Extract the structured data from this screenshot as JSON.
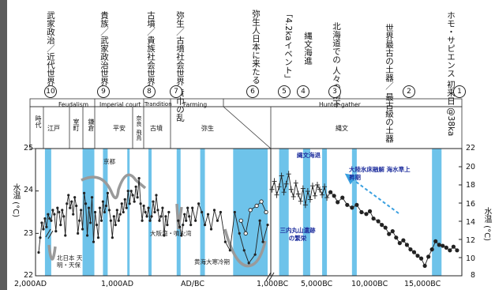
{
  "chart_data": {
    "type": "line",
    "y_axis_left": {
      "label": "水温 (°C)",
      "range": [
        22,
        25
      ],
      "ticks": [
        "25",
        "24",
        "23",
        "22"
      ]
    },
    "y_axis_right": {
      "label": "水温 (°C)",
      "range": [
        8,
        22
      ],
      "ticks": [
        "22",
        "20",
        "18",
        "16",
        "14",
        "12",
        "10",
        "8"
      ]
    },
    "x_ticks": [
      "2,000AD",
      "1,000AD",
      "AD/BC",
      "1,000BC",
      "5,000BC",
      "10,000BC",
      "15,000BC"
    ],
    "left_segment_x_range": [
      "2,000AD",
      "1,000BC"
    ],
    "right_segment_x_range": [
      "1,000BC",
      "17,000BC"
    ],
    "series": [
      {
        "axis": "left",
        "values": [
          [
            1960,
            22.55
          ],
          [
            1940,
            22.9
          ],
          [
            1920,
            23.25
          ],
          [
            1900,
            23.1
          ],
          [
            1880,
            23.35
          ],
          [
            1860,
            23.15
          ],
          [
            1840,
            23.45
          ],
          [
            1820,
            23.35
          ],
          [
            1800,
            23.3
          ],
          [
            1780,
            23.55
          ],
          [
            1760,
            23.45
          ],
          [
            1740,
            23.05
          ],
          [
            1720,
            23.6
          ],
          [
            1700,
            23.5
          ],
          [
            1680,
            23.2
          ],
          [
            1660,
            23.55
          ],
          [
            1640,
            23.4
          ],
          [
            1620,
            22.95
          ],
          [
            1600,
            23.7
          ],
          [
            1580,
            23.9
          ],
          [
            1560,
            23.6
          ],
          [
            1540,
            23.75
          ],
          [
            1520,
            23.45
          ],
          [
            1500,
            23.85
          ],
          [
            1480,
            23.65
          ],
          [
            1460,
            23.0
          ],
          [
            1440,
            23.3
          ],
          [
            1420,
            23.55
          ],
          [
            1400,
            23.1
          ],
          [
            1380,
            23.95
          ],
          [
            1360,
            23.7
          ],
          [
            1340,
            22.95
          ],
          [
            1320,
            23.6
          ],
          [
            1300,
            23.25
          ],
          [
            1280,
            23.85
          ],
          [
            1260,
            22.8
          ],
          [
            1240,
            23.5
          ],
          [
            1220,
            23.2
          ],
          [
            1200,
            22.9
          ],
          [
            1180,
            23.6
          ],
          [
            1160,
            23.3
          ],
          [
            1140,
            23.75
          ],
          [
            1120,
            23.5
          ],
          [
            1100,
            23.65
          ],
          [
            1080,
            23.95
          ],
          [
            1060,
            23.55
          ],
          [
            1040,
            23.3
          ],
          [
            1020,
            22.9
          ],
          [
            1000,
            23.4
          ],
          [
            980,
            23.2
          ],
          [
            960,
            23.55
          ],
          [
            940,
            23.3
          ],
          [
            920,
            23.45
          ],
          [
            900,
            23.7
          ],
          [
            880,
            23.5
          ],
          [
            860,
            23.8
          ],
          [
            840,
            23.6
          ],
          [
            820,
            24.0
          ],
          [
            800,
            23.7
          ],
          [
            780,
            24.0
          ],
          [
            760,
            23.9
          ],
          [
            740,
            23.75
          ],
          [
            720,
            24.1
          ],
          [
            700,
            23.85
          ],
          [
            680,
            24.3
          ],
          [
            660,
            23.7
          ],
          [
            640,
            23.3
          ],
          [
            620,
            23.65
          ],
          [
            600,
            23.5
          ],
          [
            580,
            23.4
          ],
          [
            560,
            23.6
          ],
          [
            540,
            23.3
          ],
          [
            520,
            23.4
          ],
          [
            500,
            23.75
          ],
          [
            480,
            23.5
          ],
          [
            460,
            23.9
          ],
          [
            440,
            23.55
          ],
          [
            420,
            23.3
          ],
          [
            400,
            23.4
          ],
          [
            380,
            23.6
          ],
          [
            360,
            22.95
          ],
          [
            340,
            23.4
          ],
          [
            320,
            23.2
          ],
          [
            300,
            23.5
          ]
        ]
      },
      {
        "axis": "left",
        "values": [
          [
            180,
            23.3
          ],
          [
            160,
            23.15
          ],
          [
            140,
            22.95
          ],
          [
            120,
            23.2
          ],
          [
            100,
            23.45
          ],
          [
            80,
            23.3
          ],
          [
            60,
            23.6
          ],
          [
            40,
            23.4
          ],
          [
            20,
            23.2
          ],
          [
            0,
            23.6
          ],
          [
            -40,
            23.3
          ],
          [
            -80,
            23.7
          ],
          [
            -120,
            23.5
          ],
          [
            -160,
            23.2
          ],
          [
            -200,
            23.45
          ],
          [
            -240,
            23.1
          ],
          [
            -280,
            23.55
          ],
          [
            -320,
            23.3
          ],
          [
            -360,
            23.5
          ],
          [
            -420,
            22.8
          ],
          [
            -480,
            22.6
          ],
          [
            -540,
            23.5
          ],
          [
            -600,
            23.0
          ],
          [
            -660,
            22.6
          ],
          [
            -720,
            22.3
          ],
          [
            -800,
            22.5
          ],
          [
            -860,
            23.3
          ],
          [
            -900,
            22.8
          ],
          [
            -960,
            23.2
          ]
        ]
      },
      {
        "axis": "left",
        "values": [
          [
            -620,
            23.3
          ],
          [
            -680,
            23.0
          ],
          [
            -740,
            23.55
          ],
          [
            -820,
            23.65
          ],
          [
            -880,
            23.75
          ],
          [
            -940,
            23.5
          ]
        ]
      },
      {
        "axis": "right",
        "values": [
          [
            -1100,
            17.5
          ],
          [
            -1300,
            18.4
          ],
          [
            -1500,
            16.9
          ],
          [
            -1700,
            17.8
          ],
          [
            -1900,
            19.0
          ],
          [
            -2100,
            17.2
          ],
          [
            -2300,
            18.1
          ],
          [
            -2500,
            19.2
          ],
          [
            -2700,
            17.5
          ],
          [
            -2900,
            16.7
          ],
          [
            -3100,
            18.2
          ],
          [
            -3300,
            17.0
          ],
          [
            -3500,
            16.2
          ],
          [
            -3700,
            17.6
          ],
          [
            -3900,
            15.8
          ],
          [
            -4100,
            17.3
          ],
          [
            -4300,
            16.4
          ],
          [
            -4500,
            17.9
          ],
          [
            -4700,
            16.8
          ],
          [
            -4900,
            18.0
          ],
          [
            -5100,
            17.5
          ],
          [
            -5300,
            16.9
          ],
          [
            -5500,
            17.8
          ],
          [
            -5700,
            16.6
          ],
          [
            -6000,
            17.2
          ],
          [
            -6300,
            16.8
          ],
          [
            -6600,
            16.1
          ],
          [
            -7000,
            16.6
          ],
          [
            -7400,
            15.8
          ],
          [
            -7800,
            15.5
          ],
          [
            -8200,
            15.8
          ],
          [
            -8600,
            15.0
          ],
          [
            -9000,
            14.8
          ],
          [
            -9300,
            15.1
          ],
          [
            -9600,
            14.3
          ],
          [
            -10000,
            14.0
          ],
          [
            -10300,
            13.6
          ],
          [
            -10600,
            13.3
          ],
          [
            -10900,
            12.6
          ],
          [
            -11200,
            12.9
          ],
          [
            -11500,
            12.2
          ],
          [
            -11800,
            11.6
          ],
          [
            -12100,
            11.9
          ],
          [
            -12400,
            11.4
          ],
          [
            -12700,
            10.9
          ],
          [
            -13000,
            10.6
          ],
          [
            -13300,
            10.2
          ],
          [
            -13600,
            9.9
          ],
          [
            -13900,
            9.1
          ],
          [
            -14200,
            10.1
          ],
          [
            -14500,
            10.9
          ],
          [
            -14800,
            11.8
          ],
          [
            -15100,
            11.4
          ],
          [
            -15400,
            11.3
          ],
          [
            -15700,
            11.1
          ],
          [
            -16000,
            10.8
          ],
          [
            -16300,
            11.2
          ],
          [
            -16600,
            10.8
          ]
        ]
      }
    ],
    "events_ka": [
      "⑩ 武家政治／近代世界",
      "⑨ 貴族／武家政治世界",
      "⑧ 古墳／貴族社会世界",
      "⑦ 弥生／古墳社会世界 黄巾の乱",
      "⑥ 弥生人日本に来たる",
      "⑤ 「4.2kaイベント」",
      "④ 縄文海進",
      "③ 北海道での人々の南下",
      "② 世界最古の土器 最古級の土器",
      "① ホモ・サピエンス 初来日 @38ka"
    ],
    "periods_top": [
      "Feudalism",
      "Imperial court",
      "Trandition",
      "Farming",
      "Hunter-gather"
    ],
    "periods_japan": [
      "時代",
      "江戸",
      "室町",
      "鎌倉",
      "平安",
      "奈良",
      "飛鳥",
      "古墳",
      "弥生",
      "縄文"
    ],
    "annotations": [
      "京都",
      "北日本 天明・天保",
      "大阪湾・噴火湾",
      "黄海大寒冷期",
      "縄文海退",
      "三内丸山遺跡 の繁栄",
      "大陸氷床融解 海水準上昇期"
    ],
    "colors": {
      "band": "#6ec3ea",
      "trend": "#9a9a9a",
      "line": "#222222",
      "arrow": "#3aa0e0",
      "blue_text": "#1f2f9e"
    }
  },
  "title_events": [
    {
      "num": "⑩",
      "text": "武家政治／近代世界"
    },
    {
      "num": "⑨",
      "text": "貴族／武家政治世界"
    },
    {
      "num": "⑧",
      "text": "古墳／貴族社会世界"
    },
    {
      "num": "⑦",
      "text": "弥生／古墳社会世界 黄巾の乱"
    },
    {
      "num": "⑥",
      "text": "弥生人日本に来たる"
    },
    {
      "num": "⑤",
      "text": "「4.2kaイベント」"
    },
    {
      "num": "④",
      "text": "縄文海進"
    },
    {
      "num": "③",
      "text": "北海道での 人々の南下"
    },
    {
      "num": "②",
      "text": "世界最古の土器／ 最古級の土器"
    },
    {
      "num": "①",
      "text": "ホモ・サピエンス 初来日 @38ka"
    }
  ]
}
